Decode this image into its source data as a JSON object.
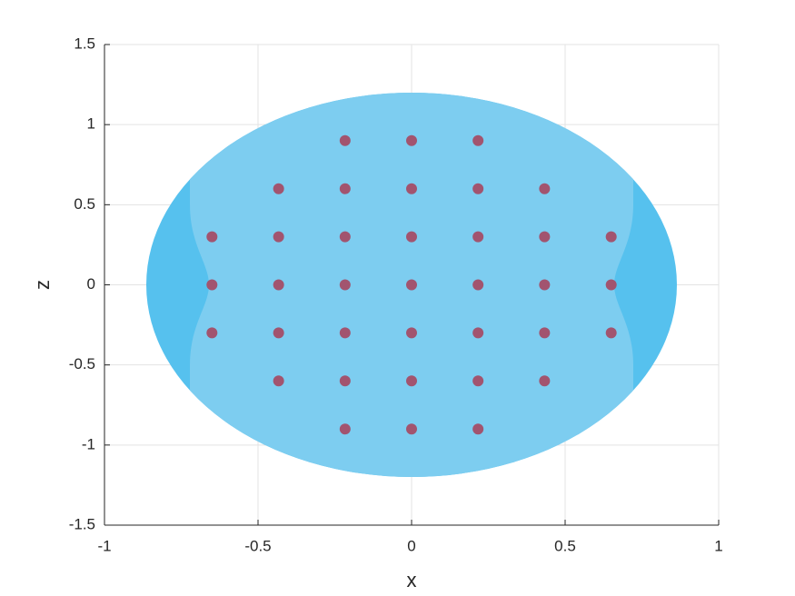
{
  "chart_data": {
    "type": "scatter",
    "x_label": "x",
    "y_label": "z",
    "xlim": [
      -1,
      1
    ],
    "ylim": [
      -1.5,
      1.5
    ],
    "xticks": [
      -1,
      -0.5,
      0,
      0.5,
      1
    ],
    "yticks": [
      -1.5,
      -1,
      -0.5,
      0,
      0.5,
      1,
      1.5
    ],
    "grid": true,
    "series": [
      {
        "color": "#a2546f",
        "x": [
          -0.2165,
          0,
          0.2165,
          -0.433,
          -0.2165,
          0,
          0.2165,
          0.433,
          -0.65,
          -0.433,
          -0.2165,
          0,
          0.2165,
          0.433,
          0.65,
          -0.65,
          -0.433,
          -0.2165,
          0,
          0.2165,
          0.433,
          0.65,
          -0.65,
          -0.433,
          -0.2165,
          0,
          0.2165,
          0.433,
          0.65,
          -0.433,
          -0.2165,
          0,
          0.2165,
          0.433,
          -0.2165,
          0,
          0.2165
        ],
        "values": [
          0.9,
          0.9,
          0.9,
          0.6,
          0.6,
          0.6,
          0.6,
          0.6,
          0.3,
          0.3,
          0.3,
          0.3,
          0.3,
          0.3,
          0.3,
          0,
          0,
          0,
          0,
          0,
          0,
          0,
          -0.3,
          -0.3,
          -0.3,
          -0.3,
          -0.3,
          -0.3,
          -0.3,
          -0.6,
          -0.6,
          -0.6,
          -0.6,
          -0.6,
          -0.9,
          -0.9,
          -0.9
        ]
      }
    ]
  }
}
